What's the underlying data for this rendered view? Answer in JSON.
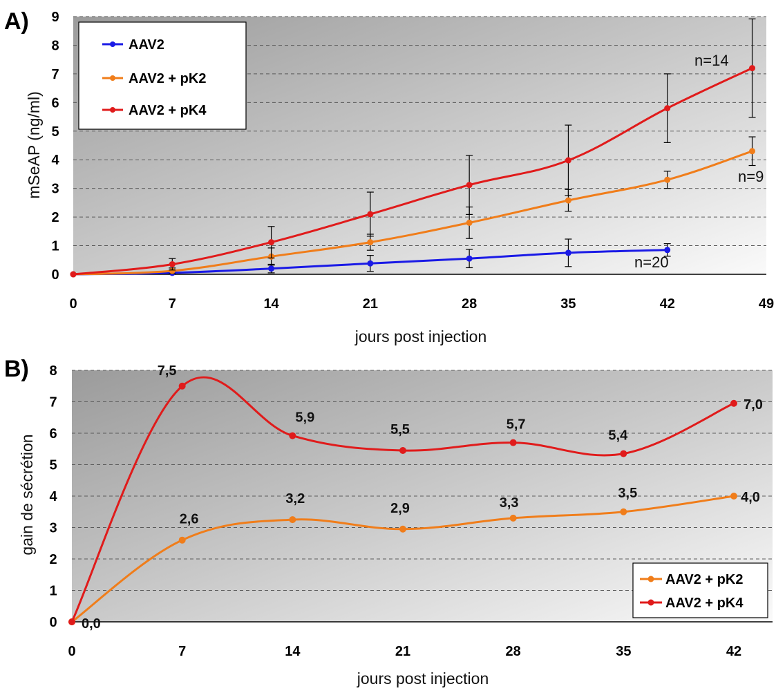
{
  "chart_data": [
    {
      "panel_label": "A)",
      "type": "line",
      "xlabel": "jours post injection",
      "ylabel": "mSeAP (ng/ml)",
      "xlim": [
        0,
        49
      ],
      "ylim": [
        0,
        9
      ],
      "x_ticks": [
        0,
        7,
        14,
        21,
        28,
        35,
        42,
        49
      ],
      "y_ticks": [
        0,
        1,
        2,
        3,
        4,
        5,
        6,
        7,
        8,
        9
      ],
      "grid": "horizontal dashed",
      "legend_position": "top-left",
      "series": [
        {
          "name": "AAV2",
          "color": "#1a1ae6",
          "x": [
            0,
            7,
            14,
            21,
            28,
            35,
            42
          ],
          "y": [
            0,
            0.05,
            0.2,
            0.38,
            0.55,
            0.75,
            0.85
          ],
          "err": [
            0,
            0.05,
            0.15,
            0.28,
            0.32,
            0.48,
            0.22
          ],
          "n_label": "n=20"
        },
        {
          "name": "AAV2 + pK2",
          "color": "#f07d1a",
          "x": [
            0,
            7,
            14,
            21,
            28,
            35,
            42,
            48
          ],
          "y": [
            0,
            0.12,
            0.62,
            1.12,
            1.8,
            2.58,
            3.3,
            4.3
          ],
          "err": [
            0,
            0.1,
            0.3,
            0.28,
            0.55,
            0.38,
            0.3,
            0.5
          ],
          "n_label": "n=9"
        },
        {
          "name": "AAV2 + pK4",
          "color": "#e01b1b",
          "x": [
            0,
            7,
            14,
            21,
            28,
            35,
            42,
            48
          ],
          "y": [
            0,
            0.35,
            1.12,
            2.1,
            3.12,
            3.98,
            5.8,
            7.2
          ],
          "err": [
            0,
            0.2,
            0.55,
            0.77,
            1.03,
            1.23,
            1.2,
            1.72
          ],
          "n_label": "n=14"
        }
      ]
    },
    {
      "panel_label": "B)",
      "type": "line",
      "xlabel": "jours post injection",
      "ylabel": "gain de sécrétion",
      "xlim": [
        0,
        42
      ],
      "ylim": [
        0,
        8
      ],
      "x_ticks": [
        0,
        7,
        14,
        21,
        28,
        35,
        42
      ],
      "y_ticks": [
        0,
        1,
        2,
        3,
        4,
        5,
        6,
        7,
        8
      ],
      "grid": "horizontal dashed",
      "legend_position": "bottom-right",
      "origin_label": "0,0",
      "series": [
        {
          "name": "AAV2 + pK2",
          "color": "#f07d1a",
          "x": [
            0,
            7,
            14,
            21,
            28,
            35,
            42
          ],
          "y": [
            0,
            2.6,
            3.25,
            2.95,
            3.3,
            3.5,
            4.0
          ],
          "labels": [
            "",
            "2,6",
            "3,2",
            "2,9",
            "3,3",
            "3,5",
            "4,0"
          ]
        },
        {
          "name": "AAV2 + pK4",
          "color": "#e01b1b",
          "x": [
            0,
            7,
            14,
            21,
            28,
            35,
            42
          ],
          "y": [
            0,
            7.5,
            5.92,
            5.45,
            5.7,
            5.35,
            6.95
          ],
          "labels": [
            "",
            "7,5",
            "5,9",
            "5,5",
            "5,7",
            "5,4",
            "7,0"
          ]
        }
      ]
    }
  ]
}
